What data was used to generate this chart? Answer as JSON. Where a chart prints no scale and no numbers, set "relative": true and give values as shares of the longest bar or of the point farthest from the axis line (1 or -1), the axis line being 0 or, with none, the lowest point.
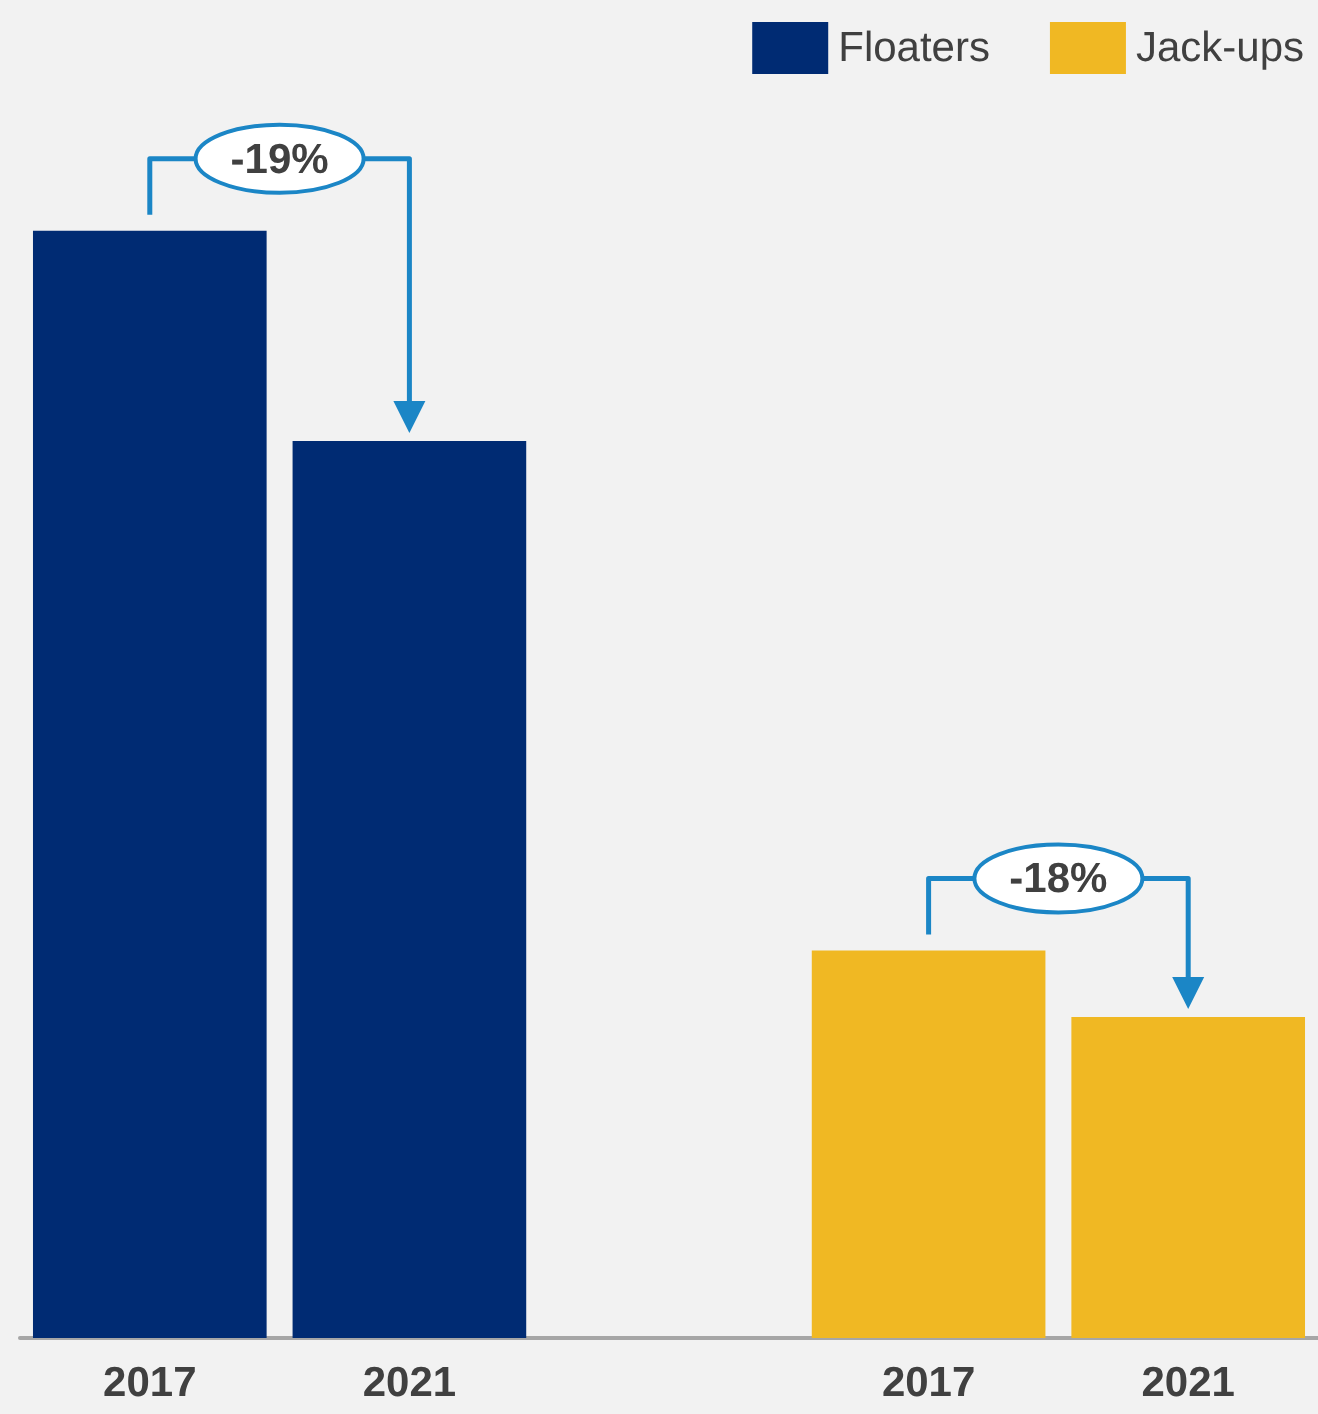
{
  "chart_data": {
    "type": "bar",
    "relative": true,
    "categories": [
      "2017",
      "2021",
      null,
      "2017",
      "2021"
    ],
    "series": [
      {
        "name": "Floaters",
        "color": "#002b73",
        "values": [
          1,
          0.81,
          null,
          null,
          null
        ]
      },
      {
        "name": "Jack-ups",
        "color": "#f0b823",
        "values": [
          null,
          null,
          null,
          0.35,
          0.29
        ]
      }
    ],
    "annotations": [
      "-19%",
      "-18%"
    ],
    "legend": "top right"
  }
}
